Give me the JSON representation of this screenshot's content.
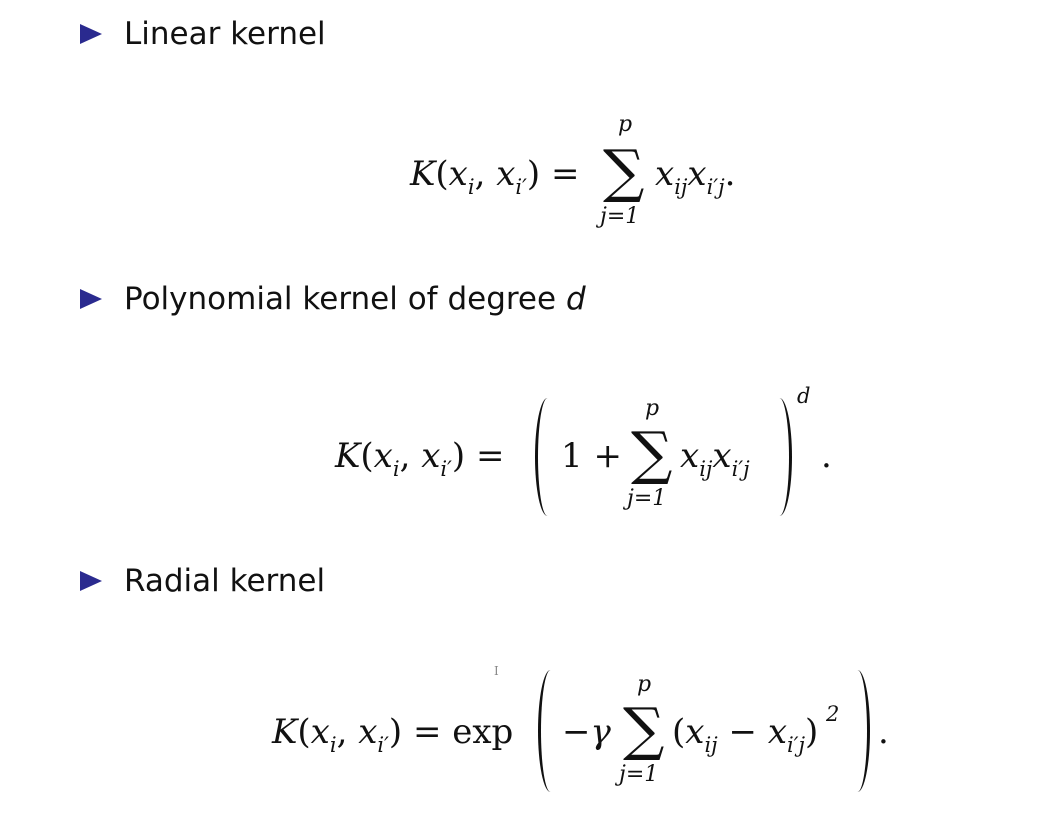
{
  "bullets": {
    "linear": "Linear kernel",
    "polynomial_prefix": "Polynomial kernel of degree ",
    "polynomial_var": "d",
    "radial": "Radial kernel"
  },
  "symbols": {
    "K": "K",
    "x": "x",
    "i": "i",
    "iprime": "i′",
    "ij": "ij",
    "iprimej": "i′j",
    "p": "p",
    "j1": "j=1",
    "d": "d",
    "gamma": "γ",
    "exp": "exp",
    "one": "1",
    "two": "2",
    "sigma": "∑",
    "equals": "=",
    "plus": "+",
    "minus": "−",
    "comma": ",",
    "lparen": "(",
    "rparen": ")",
    "period": "."
  },
  "cursor_glyph": "I",
  "colors": {
    "bullet_triangle": "#2a2a8f",
    "text": "#111111",
    "background": "#ffffff"
  }
}
